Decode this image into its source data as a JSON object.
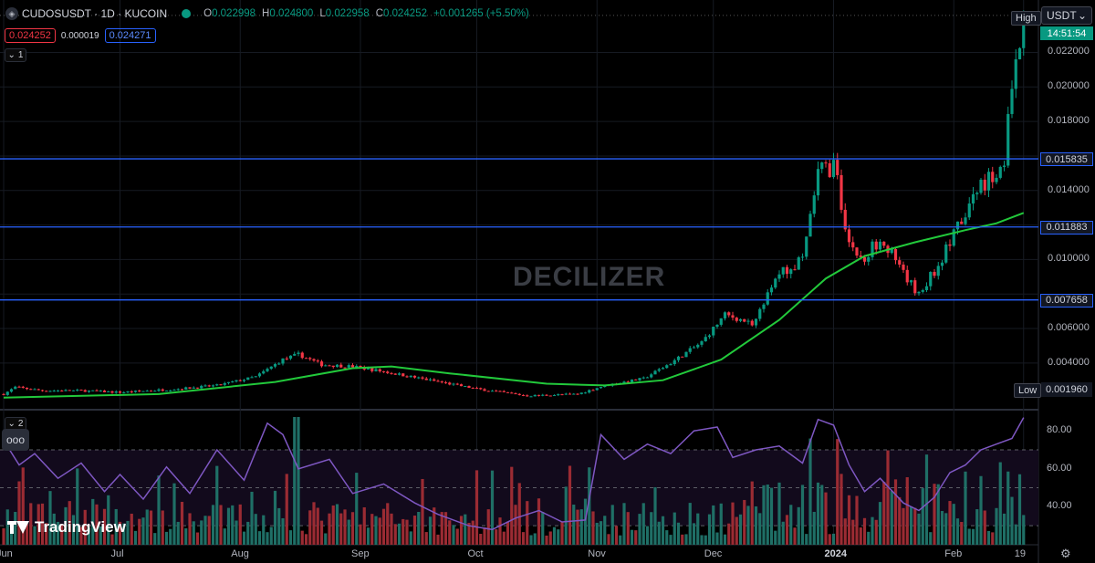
{
  "header": {
    "symbol": "CUDOSUSDT · 1D · KUCOIN",
    "ohlc": [
      {
        "k": "O",
        "v": "0.022998"
      },
      {
        "k": "H",
        "v": "0.024800"
      },
      {
        "k": "L",
        "v": "0.022958"
      },
      {
        "k": "C",
        "v": "0.024252"
      }
    ],
    "change": "+0.001265 (+5.50%)"
  },
  "quotes": {
    "sell": "0.024252",
    "spread": "0.000019",
    "buy": "0.024271"
  },
  "pane1_label": "1",
  "pane2_label": "2",
  "currency": "USDT",
  "high_label": "High",
  "low_label": "Low",
  "low_value": "0.001960",
  "countdown": "14:51:54",
  "watermark": "DECILIZER",
  "logo_text": "TradingView",
  "more_label": "ooo",
  "colors": {
    "up": "#089981",
    "down": "#f23645",
    "ma": "#22c93b",
    "levels": "#2962ff",
    "rsi": "#7e57c2"
  },
  "chart_data": {
    "type": "candlestick",
    "x_labels": [
      {
        "label": "Jun",
        "day": 0
      },
      {
        "label": "Jul",
        "day": 30
      },
      {
        "label": "Aug",
        "day": 61
      },
      {
        "label": "Sep",
        "day": 92
      },
      {
        "label": "Oct",
        "day": 122
      },
      {
        "label": "Nov",
        "day": 153
      },
      {
        "label": "Dec",
        "day": 183
      },
      {
        "label": "2024",
        "day": 214
      },
      {
        "label": "Feb",
        "day": 245
      },
      {
        "label": "19",
        "day": 263
      }
    ],
    "y_ticks": [
      "0.004000",
      "0.006000",
      "0.008000",
      "0.010000",
      "0.012000",
      "0.014000",
      "0.016000",
      "0.018000",
      "0.020000",
      "0.022000"
    ],
    "y_range": [
      0.0014,
      0.0243
    ],
    "levels": [
      "0.015835",
      "0.011883",
      "0.007658"
    ],
    "rsi_ticks": [
      "40.00",
      "60.00",
      "80.00"
    ],
    "rsi_bands": [
      30,
      50,
      70
    ],
    "anchors": [
      [
        0,
        0.0022
      ],
      [
        3,
        0.0026
      ],
      [
        10,
        0.0024
      ],
      [
        20,
        0.0024
      ],
      [
        30,
        0.0023
      ],
      [
        45,
        0.0025
      ],
      [
        55,
        0.0027
      ],
      [
        65,
        0.0032
      ],
      [
        72,
        0.0042
      ],
      [
        76,
        0.0045
      ],
      [
        82,
        0.0039
      ],
      [
        90,
        0.0038
      ],
      [
        98,
        0.0035
      ],
      [
        110,
        0.003
      ],
      [
        122,
        0.0025
      ],
      [
        135,
        0.0021
      ],
      [
        148,
        0.0022
      ],
      [
        155,
        0.0027
      ],
      [
        165,
        0.0031
      ],
      [
        172,
        0.004
      ],
      [
        180,
        0.0052
      ],
      [
        186,
        0.0068
      ],
      [
        193,
        0.0063
      ],
      [
        200,
        0.0092
      ],
      [
        206,
        0.0098
      ],
      [
        210,
        0.015
      ],
      [
        214,
        0.0155
      ],
      [
        218,
        0.011
      ],
      [
        222,
        0.0098
      ],
      [
        226,
        0.0115
      ],
      [
        232,
        0.009
      ],
      [
        236,
        0.0081
      ],
      [
        240,
        0.0093
      ],
      [
        244,
        0.011
      ],
      [
        248,
        0.0125
      ],
      [
        252,
        0.0145
      ],
      [
        256,
        0.015
      ],
      [
        258,
        0.016
      ],
      [
        260,
        0.0195
      ],
      [
        262,
        0.0224
      ],
      [
        263,
        0.0242
      ]
    ],
    "ma_points": [
      [
        0,
        0.002
      ],
      [
        40,
        0.0022
      ],
      [
        70,
        0.0029
      ],
      [
        90,
        0.0037
      ],
      [
        100,
        0.0038
      ],
      [
        115,
        0.0034
      ],
      [
        140,
        0.0028
      ],
      [
        155,
        0.0027
      ],
      [
        170,
        0.003
      ],
      [
        185,
        0.0042
      ],
      [
        200,
        0.0065
      ],
      [
        212,
        0.0089
      ],
      [
        222,
        0.0102
      ],
      [
        235,
        0.011
      ],
      [
        248,
        0.0117
      ],
      [
        256,
        0.0121
      ],
      [
        263,
        0.0127
      ]
    ],
    "rsi_points": [
      [
        0,
        75
      ],
      [
        4,
        62
      ],
      [
        8,
        68
      ],
      [
        14,
        55
      ],
      [
        20,
        63
      ],
      [
        26,
        48
      ],
      [
        30,
        57
      ],
      [
        36,
        44
      ],
      [
        42,
        61
      ],
      [
        48,
        47
      ],
      [
        55,
        70
      ],
      [
        62,
        54
      ],
      [
        68,
        84
      ],
      [
        72,
        78
      ],
      [
        76,
        60
      ],
      [
        84,
        65
      ],
      [
        90,
        47
      ],
      [
        98,
        52
      ],
      [
        106,
        42
      ],
      [
        112,
        36
      ],
      [
        120,
        30
      ],
      [
        126,
        28
      ],
      [
        132,
        34
      ],
      [
        138,
        38
      ],
      [
        144,
        32
      ],
      [
        150,
        33
      ],
      [
        154,
        78
      ],
      [
        160,
        65
      ],
      [
        166,
        73
      ],
      [
        172,
        68
      ],
      [
        178,
        80
      ],
      [
        184,
        82
      ],
      [
        188,
        66
      ],
      [
        194,
        70
      ],
      [
        200,
        72
      ],
      [
        206,
        63
      ],
      [
        210,
        86
      ],
      [
        214,
        83
      ],
      [
        218,
        62
      ],
      [
        222,
        48
      ],
      [
        226,
        55
      ],
      [
        232,
        42
      ],
      [
        236,
        38
      ],
      [
        240,
        45
      ],
      [
        244,
        58
      ],
      [
        248,
        62
      ],
      [
        252,
        70
      ],
      [
        256,
        73
      ],
      [
        260,
        76
      ],
      [
        263,
        87
      ]
    ]
  }
}
